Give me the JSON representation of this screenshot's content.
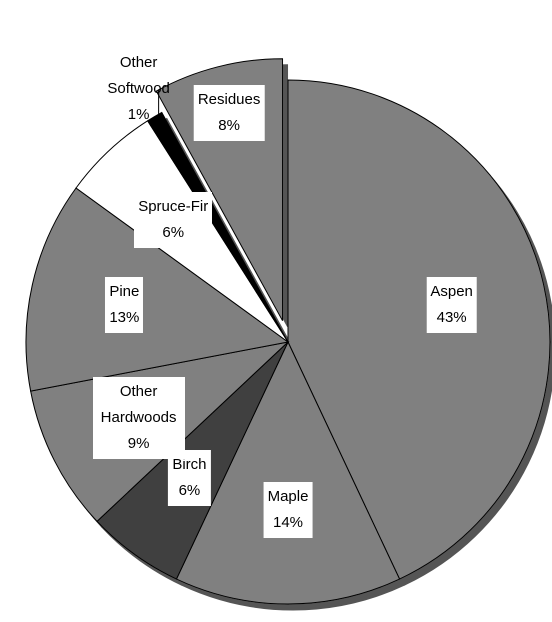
{
  "chart_data": {
    "type": "pie",
    "categories": [
      "Aspen",
      "Maple",
      "Birch",
      "Other Hardwoods",
      "Pine",
      "Spruce-Fir",
      "Other Softwood",
      "Residues"
    ],
    "values": [
      43,
      14,
      6,
      9,
      13,
      6,
      1,
      8
    ],
    "value_labels": [
      "43%",
      "14%",
      "6%",
      "9%",
      "13%",
      "6%",
      "1%",
      "8%"
    ],
    "colors": [
      "#808080",
      "#808080",
      "#404040",
      "#808080",
      "#808080",
      "#ffffff",
      "#000000",
      "#808080"
    ],
    "exploded": [
      "Residues"
    ]
  }
}
